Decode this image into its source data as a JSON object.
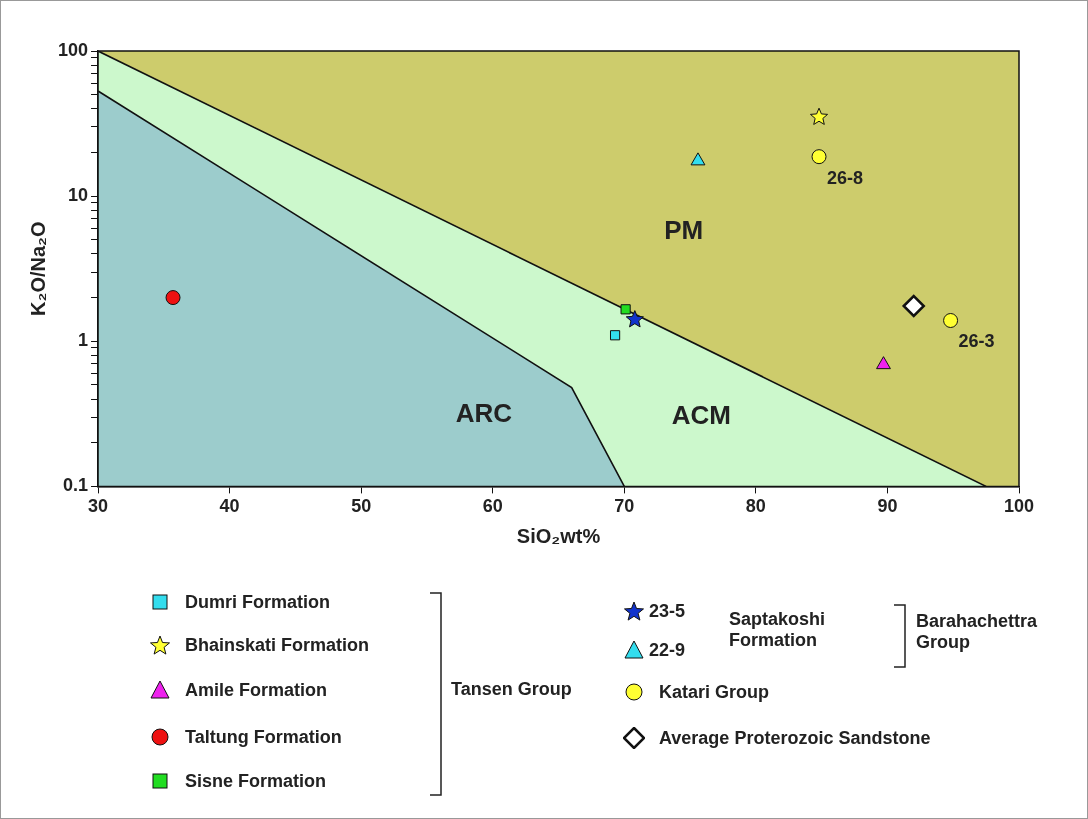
{
  "chart_data": {
    "type": "scatter",
    "xlabel": "SiO₂wt%",
    "ylabel": "K₂O/Na₂O",
    "xlim": [
      30,
      100
    ],
    "xticks": [
      30,
      40,
      50,
      60,
      70,
      80,
      90,
      100
    ],
    "ylim": [
      0.1,
      100
    ],
    "log": "y",
    "yticks": [
      0.1,
      {
        "value": 0.2,
        "label": null
      },
      {
        "value": 0.3,
        "label": null
      },
      {
        "value": 0.4,
        "label": null
      },
      {
        "value": 0.5,
        "label": null
      },
      {
        "value": 0.6,
        "label": null
      },
      {
        "value": 0.7,
        "label": null
      },
      {
        "value": 0.8,
        "label": null
      },
      {
        "value": 0.9,
        "label": null
      },
      1,
      {
        "value": 2,
        "label": null
      },
      {
        "value": 3,
        "label": null
      },
      {
        "value": 4,
        "label": null
      },
      {
        "value": 5,
        "label": null
      },
      {
        "value": 6,
        "label": null
      },
      {
        "value": 7,
        "label": null
      },
      {
        "value": 8,
        "label": null
      },
      {
        "value": 9,
        "label": null
      },
      10,
      {
        "value": 20,
        "label": null
      },
      {
        "value": 30,
        "label": null
      },
      {
        "value": 40,
        "label": null
      },
      {
        "value": 50,
        "label": null
      },
      {
        "value": 60,
        "label": null
      },
      {
        "value": 70,
        "label": null
      },
      {
        "value": 80,
        "label": null
      },
      {
        "value": 90,
        "label": null
      },
      100
    ],
    "grid": false,
    "legend": "bottom",
    "bands": [
      {
        "axis": "x",
        "from": 30,
        "to": 100,
        "color": "#cdcc6c"
      }
    ],
    "series": [
      {
        "type": "area",
        "color": "#ccf8cc",
        "x": [
          30,
          97.5
        ],
        "values": [
          100,
          0.1
        ]
      },
      {
        "type": "area",
        "color": "#9ccccc",
        "x": [
          30,
          66,
          70
        ],
        "values": [
          53,
          0.48,
          0.1
        ]
      },
      {
        "name": "Dumri Formation",
        "marker": "square",
        "color": "#33ddee",
        "x": [
          69.3
        ],
        "values": [
          1.1
        ]
      },
      {
        "name": "Bhainskati Formation",
        "marker": "star",
        "color": "#ffff33",
        "x": [
          84.8
        ],
        "values": [
          35
        ]
      },
      {
        "name": "Amile Formation",
        "marker": "triangle",
        "color": "#ee22ee",
        "x": [
          89.7
        ],
        "values": [
          0.69
        ]
      },
      {
        "name": "Taltung Formation",
        "marker": "circle",
        "color": "#ee1111",
        "x": [
          35.7
        ],
        "values": [
          2.0
        ]
      },
      {
        "name": "Sisne Formation",
        "marker": "square",
        "color": "#22dd22",
        "x": [
          70.1
        ],
        "values": [
          1.66
        ]
      },
      {
        "name": "23-5",
        "marker": "star",
        "color": "#1133cc",
        "x": [
          70.8
        ],
        "values": [
          1.41
        ]
      },
      {
        "name": "22-9",
        "marker": "triangle",
        "color": "#33ddee",
        "x": [
          75.6
        ],
        "values": [
          17.5
        ]
      },
      {
        "name": "Katari Group",
        "marker": "circle",
        "color": "#ffff33",
        "x": [
          84.8,
          94.8
        ],
        "values": [
          18.7,
          1.39
        ]
      },
      {
        "name": "Average Proterozoic Sandstone",
        "marker": "diamond",
        "color": "#ffffff",
        "x": [
          92.0
        ],
        "values": [
          1.75
        ]
      }
    ],
    "annotations": [
      "Tansen Group",
      "Saptakoshi Formation",
      "Barahachettra Group",
      "PM",
      "ACM",
      "ARC",
      {
        "text": "26-8",
        "x": 84.8,
        "y": 18.7
      },
      {
        "text": "26-3",
        "x": 94.8,
        "y": 1.39
      }
    ]
  }
}
